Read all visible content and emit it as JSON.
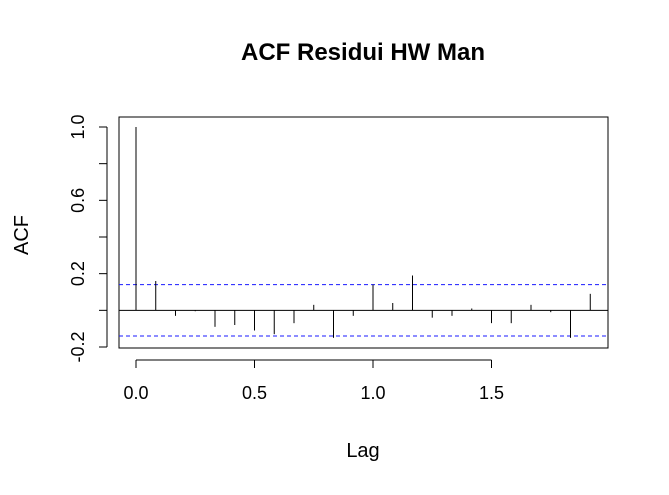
{
  "chart_data": {
    "type": "bar",
    "title": "ACF Residui HW Man",
    "xlabel": "Lag",
    "ylabel": "ACF",
    "xlim": [
      -0.04,
      1.97
    ],
    "ylim": [
      -0.2,
      1.0
    ],
    "x_ticks": [
      0.0,
      0.5,
      1.0,
      1.5
    ],
    "x_tick_labels": [
      "0.0",
      "0.5",
      "1.0",
      "1.5"
    ],
    "y_ticks": [
      -0.2,
      0.0,
      0.2,
      0.4,
      0.6,
      0.8,
      1.0
    ],
    "y_tick_labels": [
      "-0.2",
      "",
      "0.2",
      "",
      "0.6",
      "",
      "1.0"
    ],
    "confidence_band": 0.14,
    "lags": [
      0.0,
      0.0833,
      0.1667,
      0.25,
      0.3333,
      0.4167,
      0.5,
      0.5833,
      0.6667,
      0.75,
      0.8333,
      0.9167,
      1.0,
      1.0833,
      1.1667,
      1.25,
      1.3333,
      1.4167,
      1.5,
      1.5833,
      1.6667,
      1.75,
      1.8333,
      1.9167
    ],
    "values": [
      1.0,
      0.16,
      -0.03,
      -0.005,
      -0.09,
      -0.08,
      -0.11,
      -0.13,
      -0.07,
      0.03,
      -0.15,
      -0.03,
      0.14,
      0.04,
      0.19,
      -0.04,
      -0.03,
      0.01,
      -0.07,
      -0.07,
      0.03,
      -0.01,
      -0.15,
      0.09
    ],
    "colors": {
      "bars": "#000000",
      "band": "#1a1aff",
      "axes": "#000000"
    }
  }
}
